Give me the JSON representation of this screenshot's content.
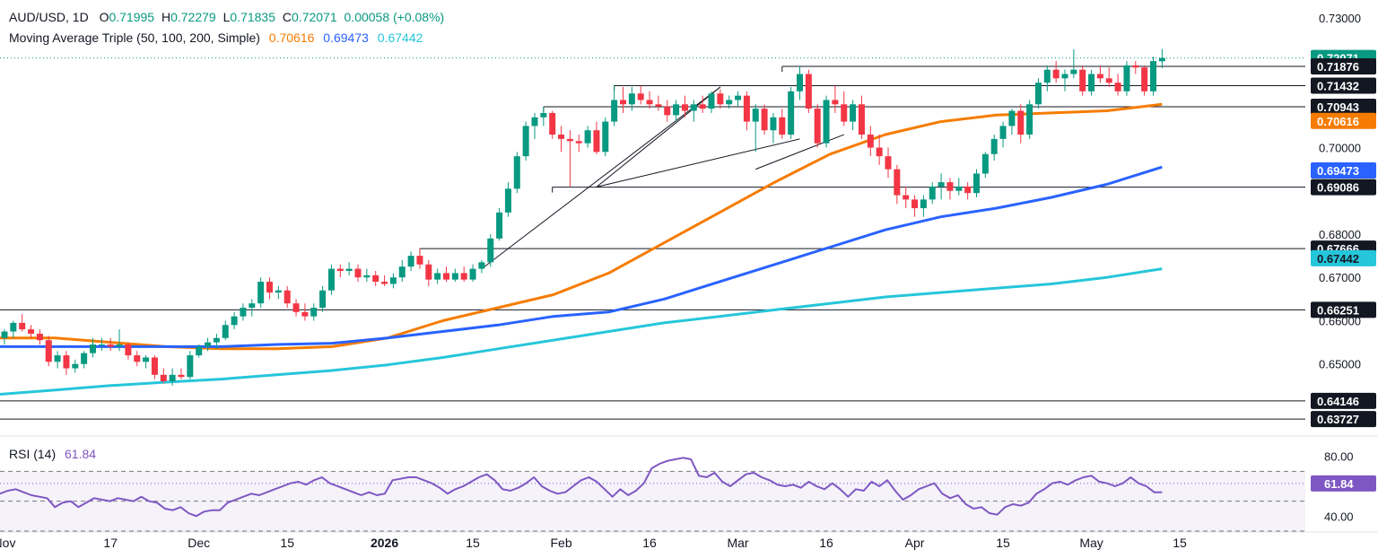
{
  "header": {
    "symbol": "AUD/USD, 1D",
    "o_label": "O",
    "o": "0.71995",
    "h_label": "H",
    "h": "0.72279",
    "l_label": "L",
    "l": "0.71835",
    "c_label": "C",
    "c": "0.72071",
    "change": "0.00058 (+0.08%)",
    "ma_label": "Moving Average Triple (50, 100, 200, Simple)",
    "ma50": "0.70616",
    "ma100": "0.69473",
    "ma200": "0.67442"
  },
  "rsi_header": {
    "label": "RSI (14)",
    "value": "61.84"
  },
  "colors": {
    "up": "#089981",
    "down": "#f23645",
    "ma50": "#f57c00",
    "ma100": "#2962ff",
    "ma200": "#26c6da",
    "rsi": "#7e57c2",
    "price_tag": "#089981"
  },
  "chart_data": {
    "type": "candlestick",
    "symbol": "AUD/USD",
    "timeframe": "1D",
    "price_axis": {
      "range": [
        0.6345,
        0.734
      ],
      "ticks": [
        "0.73000",
        "0.70000",
        "0.68000",
        "0.67000",
        "0.66000",
        "0.65000"
      ]
    },
    "tag_labels": [
      {
        "label": "0.72071",
        "value": 0.72071,
        "style": "last"
      },
      {
        "label": "0.71876",
        "value": 0.71876,
        "style": "level"
      },
      {
        "label": "0.71432",
        "value": 0.71432,
        "style": "level"
      },
      {
        "label": "0.70943",
        "value": 0.70943,
        "style": "level"
      },
      {
        "label": "0.70616",
        "value": 0.70616,
        "style": "ma50"
      },
      {
        "label": "0.69473",
        "value": 0.69473,
        "style": "ma100"
      },
      {
        "label": "0.69086",
        "value": 0.69086,
        "style": "level"
      },
      {
        "label": "0.67666",
        "value": 0.67666,
        "style": "level"
      },
      {
        "label": "0.67442",
        "value": 0.67442,
        "style": "ma200"
      },
      {
        "label": "0.66251",
        "value": 0.66251,
        "style": "level"
      },
      {
        "label": "0.64146",
        "value": 0.64146,
        "style": "level"
      },
      {
        "label": "0.63727",
        "value": 0.63727,
        "style": "level"
      }
    ],
    "x_axis": {
      "labels": [
        "Nov",
        "17",
        "Dec",
        "15",
        "2026",
        "15",
        "Feb",
        "16",
        "Mar",
        "16",
        "Apr",
        "15",
        "May",
        "15"
      ],
      "label_bar_index": [
        0,
        12,
        22,
        32,
        43,
        53,
        63,
        73,
        83,
        93,
        103,
        113,
        123,
        133
      ]
    },
    "candles": [
      [
        0.656,
        0.658,
        0.6545,
        0.6575
      ],
      [
        0.6575,
        0.66,
        0.656,
        0.6595
      ],
      [
        0.6595,
        0.6615,
        0.6575,
        0.658
      ],
      [
        0.658,
        0.659,
        0.656,
        0.657
      ],
      [
        0.657,
        0.658,
        0.6545,
        0.6555
      ],
      [
        0.6555,
        0.6565,
        0.6495,
        0.6505
      ],
      [
        0.6505,
        0.653,
        0.649,
        0.652
      ],
      [
        0.652,
        0.653,
        0.6475,
        0.649
      ],
      [
        0.649,
        0.651,
        0.648,
        0.65
      ],
      [
        0.65,
        0.653,
        0.649,
        0.6525
      ],
      [
        0.6525,
        0.656,
        0.6515,
        0.6545
      ],
      [
        0.6545,
        0.656,
        0.653,
        0.6545
      ],
      [
        0.6545,
        0.656,
        0.653,
        0.654
      ],
      [
        0.654,
        0.658,
        0.653,
        0.6545
      ],
      [
        0.6545,
        0.655,
        0.651,
        0.652
      ],
      [
        0.652,
        0.653,
        0.6495,
        0.6505
      ],
      [
        0.6505,
        0.652,
        0.649,
        0.6515
      ],
      [
        0.6515,
        0.652,
        0.6465,
        0.6475
      ],
      [
        0.6475,
        0.649,
        0.6455,
        0.646
      ],
      [
        0.646,
        0.649,
        0.645,
        0.6475
      ],
      [
        0.6475,
        0.649,
        0.6465,
        0.647
      ],
      [
        0.647,
        0.653,
        0.6465,
        0.652
      ],
      [
        0.652,
        0.6545,
        0.6515,
        0.654
      ],
      [
        0.654,
        0.656,
        0.653,
        0.655
      ],
      [
        0.655,
        0.657,
        0.6535,
        0.656
      ],
      [
        0.656,
        0.66,
        0.6555,
        0.659
      ],
      [
        0.659,
        0.662,
        0.658,
        0.661
      ],
      [
        0.661,
        0.664,
        0.66,
        0.663
      ],
      [
        0.663,
        0.665,
        0.661,
        0.664
      ],
      [
        0.664,
        0.67,
        0.663,
        0.669
      ],
      [
        0.669,
        0.67,
        0.665,
        0.6665
      ],
      [
        0.6665,
        0.668,
        0.665,
        0.667
      ],
      [
        0.667,
        0.668,
        0.663,
        0.664
      ],
      [
        0.664,
        0.665,
        0.661,
        0.662
      ],
      [
        0.662,
        0.664,
        0.66,
        0.661
      ],
      [
        0.661,
        0.664,
        0.66,
        0.663
      ],
      [
        0.663,
        0.668,
        0.662,
        0.667
      ],
      [
        0.667,
        0.673,
        0.666,
        0.672
      ],
      [
        0.672,
        0.673,
        0.67,
        0.6715
      ],
      [
        0.6715,
        0.6735,
        0.6705,
        0.672
      ],
      [
        0.672,
        0.673,
        0.669,
        0.67
      ],
      [
        0.67,
        0.672,
        0.669,
        0.6705
      ],
      [
        0.6705,
        0.6715,
        0.668,
        0.669
      ],
      [
        0.669,
        0.6705,
        0.668,
        0.6685
      ],
      [
        0.6685,
        0.671,
        0.6675,
        0.67
      ],
      [
        0.67,
        0.674,
        0.669,
        0.6725
      ],
      [
        0.6725,
        0.676,
        0.6715,
        0.675
      ],
      [
        0.675,
        0.6767,
        0.672,
        0.673
      ],
      [
        0.673,
        0.674,
        0.668,
        0.6695
      ],
      [
        0.6695,
        0.672,
        0.6685,
        0.671
      ],
      [
        0.671,
        0.6725,
        0.669,
        0.6695
      ],
      [
        0.6695,
        0.672,
        0.669,
        0.671
      ],
      [
        0.671,
        0.6725,
        0.669,
        0.6695
      ],
      [
        0.6695,
        0.673,
        0.669,
        0.672
      ],
      [
        0.672,
        0.674,
        0.671,
        0.6735
      ],
      [
        0.6735,
        0.68,
        0.6725,
        0.679
      ],
      [
        0.679,
        0.686,
        0.6785,
        0.685
      ],
      [
        0.685,
        0.692,
        0.684,
        0.6905
      ],
      [
        0.6905,
        0.699,
        0.6895,
        0.698
      ],
      [
        0.698,
        0.706,
        0.697,
        0.705
      ],
      [
        0.705,
        0.708,
        0.702,
        0.707
      ],
      [
        0.707,
        0.7094,
        0.705,
        0.708
      ],
      [
        0.708,
        0.7085,
        0.702,
        0.703
      ],
      [
        0.703,
        0.705,
        0.699,
        0.702
      ],
      [
        0.702,
        0.704,
        0.6909,
        0.7015
      ],
      [
        0.7015,
        0.703,
        0.699,
        0.701
      ],
      [
        0.701,
        0.705,
        0.7,
        0.704
      ],
      [
        0.704,
        0.706,
        0.6985,
        0.699
      ],
      [
        0.699,
        0.707,
        0.698,
        0.706
      ],
      [
        0.706,
        0.7145,
        0.705,
        0.711
      ],
      [
        0.711,
        0.714,
        0.708,
        0.71
      ],
      [
        0.71,
        0.714,
        0.7085,
        0.7125
      ],
      [
        0.7125,
        0.7143,
        0.71,
        0.711
      ],
      [
        0.711,
        0.713,
        0.709,
        0.71
      ],
      [
        0.71,
        0.712,
        0.7085,
        0.7095
      ],
      [
        0.7095,
        0.711,
        0.706,
        0.7075
      ],
      [
        0.7075,
        0.711,
        0.706,
        0.71
      ],
      [
        0.71,
        0.712,
        0.707,
        0.7085
      ],
      [
        0.7085,
        0.711,
        0.706,
        0.71
      ],
      [
        0.71,
        0.712,
        0.708,
        0.709
      ],
      [
        0.709,
        0.713,
        0.708,
        0.7125
      ],
      [
        0.7125,
        0.7135,
        0.709,
        0.71
      ],
      [
        0.71,
        0.712,
        0.709,
        0.711
      ],
      [
        0.711,
        0.713,
        0.7095,
        0.712
      ],
      [
        0.712,
        0.713,
        0.704,
        0.706
      ],
      [
        0.706,
        0.71,
        0.699,
        0.709
      ],
      [
        0.709,
        0.71,
        0.703,
        0.704
      ],
      [
        0.704,
        0.708,
        0.701,
        0.707
      ],
      [
        0.707,
        0.709,
        0.702,
        0.703
      ],
      [
        0.703,
        0.714,
        0.702,
        0.713
      ],
      [
        0.713,
        0.7188,
        0.711,
        0.717
      ],
      [
        0.717,
        0.718,
        0.708,
        0.709
      ],
      [
        0.709,
        0.71,
        0.7,
        0.701
      ],
      [
        0.701,
        0.712,
        0.7,
        0.711
      ],
      [
        0.711,
        0.7143,
        0.708,
        0.71
      ],
      [
        0.71,
        0.713,
        0.705,
        0.706
      ],
      [
        0.706,
        0.711,
        0.704,
        0.71
      ],
      [
        0.71,
        0.712,
        0.702,
        0.703
      ],
      [
        0.703,
        0.705,
        0.698,
        0.7
      ],
      [
        0.7,
        0.703,
        0.696,
        0.698
      ],
      [
        0.698,
        0.7,
        0.693,
        0.695
      ],
      [
        0.695,
        0.696,
        0.687,
        0.689
      ],
      [
        0.689,
        0.691,
        0.686,
        0.688
      ],
      [
        0.688,
        0.689,
        0.684,
        0.686
      ],
      [
        0.686,
        0.689,
        0.684,
        0.688
      ],
      [
        0.688,
        0.692,
        0.687,
        0.691
      ],
      [
        0.691,
        0.694,
        0.688,
        0.692
      ],
      [
        0.692,
        0.693,
        0.688,
        0.69
      ],
      [
        0.69,
        0.693,
        0.689,
        0.691
      ],
      [
        0.691,
        0.692,
        0.688,
        0.6895
      ],
      [
        0.6895,
        0.695,
        0.6885,
        0.694
      ],
      [
        0.694,
        0.699,
        0.693,
        0.6985
      ],
      [
        0.6985,
        0.703,
        0.697,
        0.702
      ],
      [
        0.702,
        0.706,
        0.7,
        0.705
      ],
      [
        0.705,
        0.709,
        0.703,
        0.7085
      ],
      [
        0.7085,
        0.71,
        0.701,
        0.703
      ],
      [
        0.703,
        0.711,
        0.702,
        0.71
      ],
      [
        0.71,
        0.716,
        0.709,
        0.715
      ],
      [
        0.715,
        0.719,
        0.713,
        0.718
      ],
      [
        0.718,
        0.72,
        0.715,
        0.716
      ],
      [
        0.716,
        0.718,
        0.713,
        0.717
      ],
      [
        0.717,
        0.7227,
        0.716,
        0.718
      ],
      [
        0.718,
        0.719,
        0.712,
        0.713
      ],
      [
        0.713,
        0.718,
        0.712,
        0.717
      ],
      [
        0.717,
        0.719,
        0.715,
        0.716
      ],
      [
        0.716,
        0.7185,
        0.714,
        0.715
      ],
      [
        0.715,
        0.717,
        0.712,
        0.713
      ],
      [
        0.713,
        0.72,
        0.712,
        0.719
      ],
      [
        0.719,
        0.72,
        0.717,
        0.7185
      ],
      [
        0.7185,
        0.719,
        0.712,
        0.713
      ],
      [
        0.713,
        0.721,
        0.712,
        0.72
      ],
      [
        0.71995,
        0.72279,
        0.71835,
        0.72071
      ]
    ],
    "moving_averages": [
      {
        "name": "MA 50",
        "period": 50,
        "last": 0.70616,
        "values": [
          0.656,
          0.656,
          0.655,
          0.654,
          0.6535,
          0.6535,
          0.654,
          0.656,
          0.66,
          0.663,
          0.666,
          0.671,
          0.678,
          0.685,
          0.692,
          0.6985,
          0.703,
          0.706,
          0.7075,
          0.708,
          0.7085,
          0.71
        ]
      },
      {
        "name": "MA 100",
        "period": 100,
        "last": 0.69473,
        "values": [
          0.654,
          0.654,
          0.654,
          0.654,
          0.654,
          0.6545,
          0.6548,
          0.656,
          0.6575,
          0.659,
          0.661,
          0.662,
          0.665,
          0.669,
          0.673,
          0.677,
          0.681,
          0.684,
          0.686,
          0.6885,
          0.6915,
          0.6955
        ]
      },
      {
        "name": "MA 200",
        "period": 200,
        "last": 0.67442,
        "values": [
          0.643,
          0.644,
          0.645,
          0.6458,
          0.6465,
          0.6475,
          0.6485,
          0.6498,
          0.6515,
          0.6535,
          0.6555,
          0.6575,
          0.6595,
          0.661,
          0.6625,
          0.664,
          0.6655,
          0.6665,
          0.6675,
          0.6685,
          0.67,
          0.672
        ]
      }
    ],
    "horizontal_levels": [
      {
        "value": 0.71876,
        "from_bar": 88
      },
      {
        "value": 0.71432,
        "from_bar": 69
      },
      {
        "value": 0.70943,
        "from_bar": 61
      },
      {
        "value": 0.69086,
        "from_bar": 62
      },
      {
        "value": 0.67666,
        "from_bar": 47
      },
      {
        "value": 0.66251,
        "from_bar": 0
      },
      {
        "value": 0.64146,
        "from_bar": 0
      },
      {
        "value": 0.63727,
        "from_bar": 0
      }
    ],
    "trendlines": [
      {
        "from": [
          54,
          0.672
        ],
        "to": [
          81,
          0.714
        ]
      },
      {
        "from": [
          67,
          0.6909
        ],
        "to": [
          81,
          0.714
        ]
      },
      {
        "from": [
          67,
          0.6909
        ],
        "to": [
          90,
          0.702
        ]
      },
      {
        "from": [
          85,
          0.695
        ],
        "to": [
          95,
          0.703
        ]
      }
    ],
    "rsi": {
      "period": 14,
      "last": 61.84,
      "range": [
        30,
        90
      ],
      "ticks": [
        "80.00",
        "40.00"
      ],
      "bands": [
        30,
        70
      ],
      "values": [
        55,
        57,
        58,
        56,
        54,
        53,
        52,
        46,
        49,
        50,
        46,
        49,
        52,
        51,
        50,
        52,
        51,
        50,
        53,
        50,
        49,
        45,
        44,
        46,
        42,
        40,
        43,
        44,
        44,
        49,
        51,
        53,
        55,
        54,
        56,
        58,
        60,
        62,
        63,
        61,
        64,
        66,
        62,
        60,
        58,
        56,
        54,
        56,
        54,
        55,
        64,
        65,
        66,
        66,
        64,
        62,
        59,
        55,
        58,
        60,
        63,
        66,
        68,
        64,
        58,
        57,
        59,
        62,
        66,
        60,
        57,
        55,
        56,
        60,
        64,
        66,
        63,
        58,
        53,
        58,
        54,
        57,
        62,
        72,
        75,
        77,
        78,
        79,
        78,
        67,
        66,
        69,
        63,
        60,
        64,
        68,
        69,
        66,
        64,
        61,
        60,
        61,
        59,
        63,
        60,
        58,
        62,
        58,
        53,
        58,
        57,
        63,
        60,
        64,
        57,
        51,
        54,
        58,
        60,
        62,
        55,
        52,
        54,
        48,
        45,
        46,
        42,
        41,
        46,
        48,
        47,
        49,
        55,
        58,
        62,
        63,
        61,
        64,
        66,
        67,
        63,
        62,
        60,
        62,
        66,
        62,
        60,
        56,
        56
      ]
    }
  }
}
